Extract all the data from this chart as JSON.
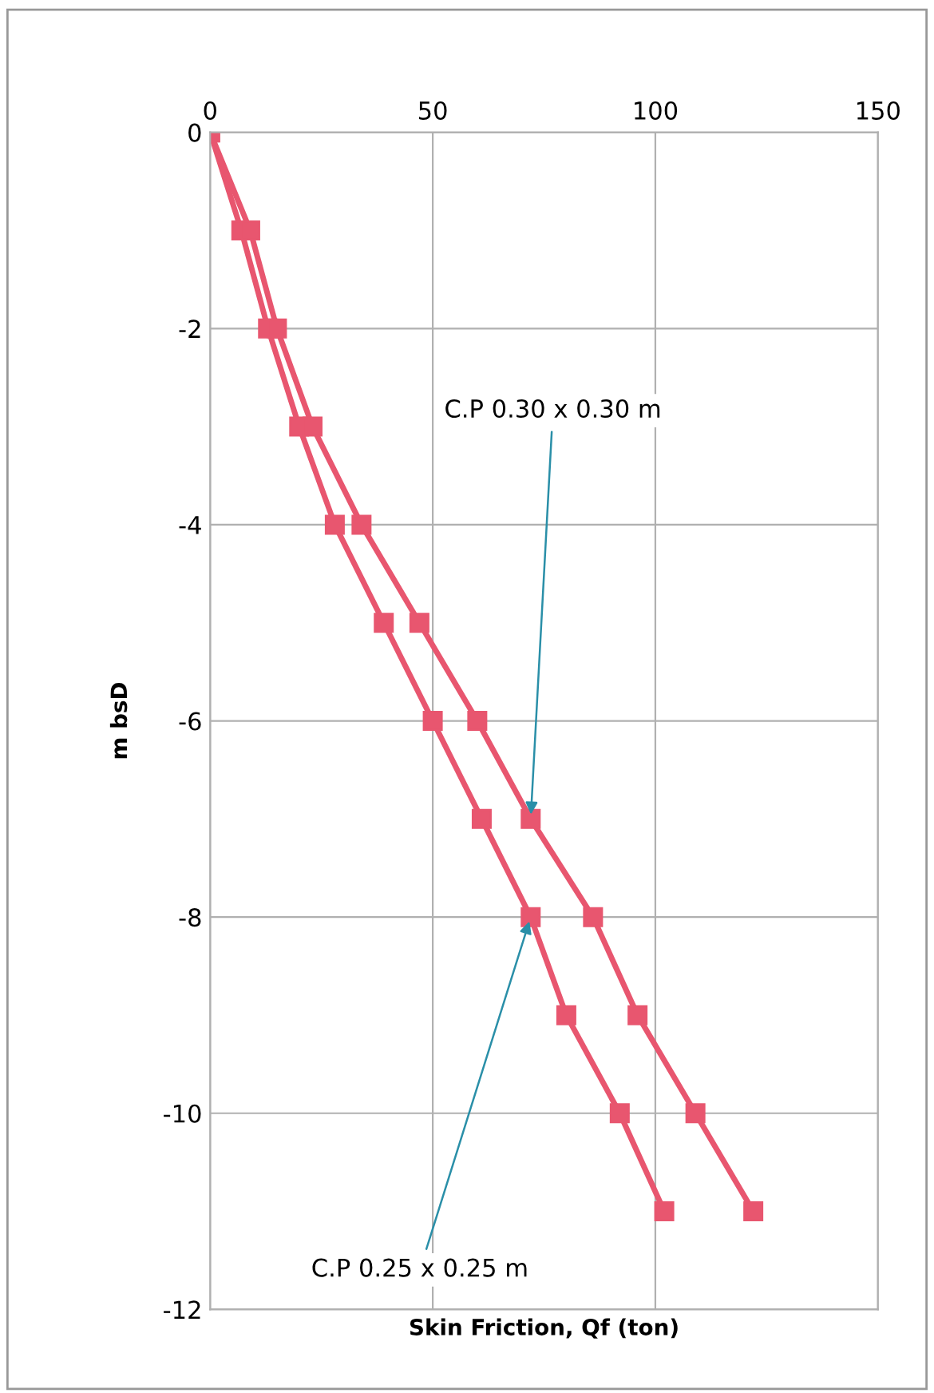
{
  "chart_data": {
    "type": "line",
    "xlabel": "Skin Friction, Qf (ton)",
    "ylabel": "m bsD",
    "series": [
      {
        "color": "#e8566f",
        "x": [
          0,
          7,
          13,
          20,
          28,
          39,
          50,
          61,
          72,
          80,
          92,
          102
        ],
        "values": [
          0,
          -1,
          -2,
          -3,
          -4,
          -5,
          -6,
          -7,
          -8,
          -9,
          -10,
          -11
        ]
      },
      {
        "color": "#e8566f",
        "x": [
          0,
          9,
          15,
          23,
          34,
          47,
          60,
          72,
          86,
          96,
          109,
          122
        ],
        "values": [
          0,
          -1,
          -2,
          -3,
          -4,
          -5,
          -6,
          -7,
          -8,
          -9,
          -10,
          -11
        ]
      }
    ],
    "annotations": [
      {
        "text": "C.P 0.30 x 0.30 m",
        "x": 72,
        "y": -7
      },
      {
        "text": "C.P 0.25 x 0.25 m",
        "x": 72,
        "y": -8
      }
    ],
    "xlim": [
      0,
      150
    ],
    "xticks": [
      0,
      50,
      100,
      150
    ],
    "ylim": [
      -12,
      0
    ],
    "yticks": [
      0,
      -2,
      -4,
      -6,
      -8,
      -10,
      -12
    ],
    "grid": true,
    "marker": "square",
    "line_style": "solid"
  }
}
